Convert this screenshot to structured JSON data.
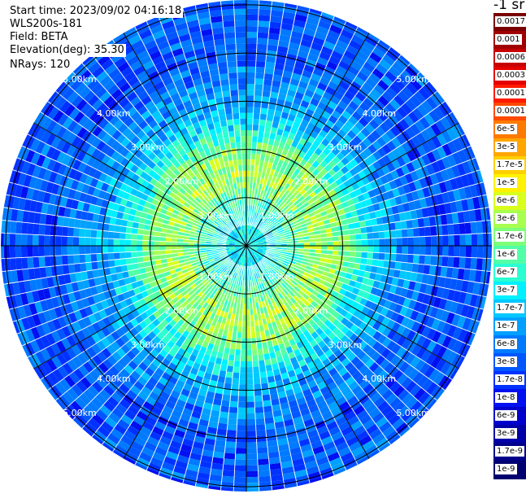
{
  "info": {
    "start_time": "Start time: 2023/09/02 04:16:18",
    "instrument": "WLS200s-181",
    "field": "Field: BETA",
    "elevation": "Elevation(deg): 35.30",
    "nrays": "NRays: 120"
  },
  "colorbar": {
    "title": "-1 sr",
    "labels": [
      "0.0017",
      "0.001",
      "0.0006",
      "0.0003",
      "0.00017",
      "0.0001",
      "6e-5",
      "3e-5",
      "1.7e-5",
      "1e-5",
      "6e-6",
      "3e-6",
      "1.7e-6",
      "1e-6",
      "6e-7",
      "3e-7",
      "1.7e-7",
      "1e-7",
      "6e-8",
      "3e-8",
      "1.7e-8",
      "1e-8",
      "6e-9",
      "3e-9",
      "1.7e-9",
      "1e-9"
    ],
    "colors": [
      "#7a0000",
      "#a00000",
      "#c80000",
      "#e60000",
      "#ff1a00",
      "#ff4a00",
      "#ff7a00",
      "#ffa600",
      "#ffd000",
      "#fff200",
      "#d8ff1e",
      "#a8ff4f",
      "#7dff7a",
      "#52ffa6",
      "#2bffd2",
      "#00f0ff",
      "#00c8ff",
      "#00a0ff",
      "#007aff",
      "#0056ff",
      "#0032ff",
      "#0010f0",
      "#0000cc",
      "#0000a8",
      "#00008a",
      "#000070"
    ]
  },
  "chart_data": {
    "type": "polar-heatmap",
    "field": "BETA",
    "elevation_deg": 35.3,
    "n_rays": 120,
    "range_km_max": 5.1,
    "range_rings_km": [
      1,
      2,
      3,
      4,
      5
    ],
    "ring_labels": [
      "1.00km",
      "2.00km",
      "3.00km",
      "4.00km",
      "5.00km"
    ],
    "azimuth_spokes_deg": [
      0,
      30,
      60,
      90,
      120,
      150,
      180,
      210,
      240,
      270,
      300,
      330
    ],
    "radial_profile": [
      {
        "range_km": 0.0,
        "beta": 3e-07
      },
      {
        "range_km": 0.5,
        "beta": 3e-07
      },
      {
        "range_km": 1.0,
        "beta": 1e-06
      },
      {
        "range_km": 1.5,
        "beta": 3e-06
      },
      {
        "range_km": 2.0,
        "beta": 1.7e-06
      },
      {
        "range_km": 2.5,
        "beta": 3e-07
      },
      {
        "range_km": 3.0,
        "beta": 1e-07
      },
      {
        "range_km": 3.5,
        "beta": 6e-08
      },
      {
        "range_km": 4.0,
        "beta": 3e-08
      },
      {
        "range_km": 4.5,
        "beta": 3e-08
      },
      {
        "range_km": 5.0,
        "beta": 3e-08
      }
    ]
  }
}
